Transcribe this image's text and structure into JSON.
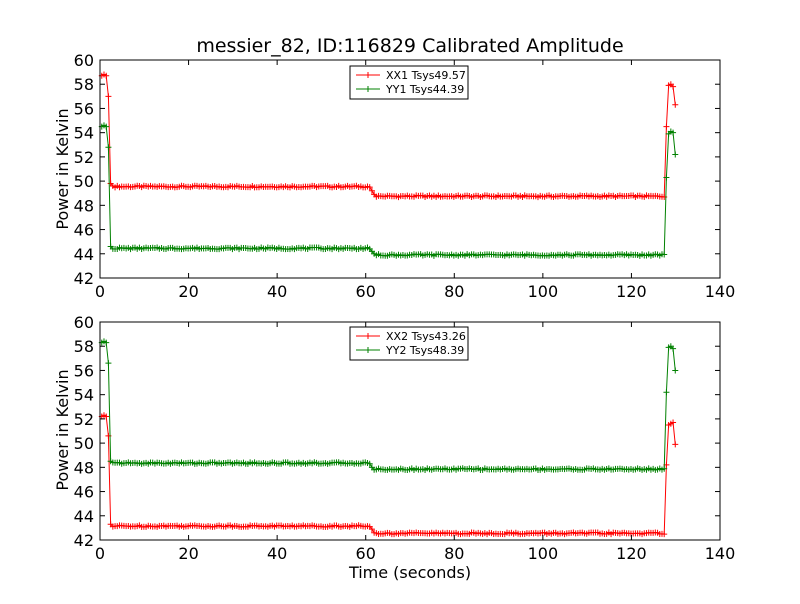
{
  "chart_data": [
    {
      "type": "line",
      "title": "messier_82, ID:116829 Calibrated Amplitude",
      "xlabel": "",
      "ylabel": "Power in Kelvin",
      "xlim": [
        0,
        140
      ],
      "ylim": [
        42,
        60
      ],
      "xticks": [
        "0",
        "20",
        "40",
        "60",
        "80",
        "100",
        "120",
        "140"
      ],
      "yticks": [
        "42",
        "44",
        "46",
        "48",
        "50",
        "52",
        "54",
        "56",
        "58",
        "60"
      ],
      "legend_position": "top-center",
      "grid": false,
      "series": [
        {
          "name": "XX1 Tsys49.57",
          "color": "#ff0000",
          "start": [
            [
              0.4,
              58.7
            ],
            [
              0.9,
              58.8
            ],
            [
              1.4,
              58.7
            ],
            [
              1.9,
              57.0
            ],
            [
              2.4,
              49.8
            ],
            [
              2.9,
              49.6
            ]
          ],
          "segments": [
            {
              "from": 3.4,
              "to": 60.4,
              "level": 49.55
            },
            {
              "from": 62.4,
              "to": 127.4,
              "level": 48.75
            }
          ],
          "transition": [
            [
              60.9,
              49.5
            ],
            [
              61.4,
              49.2
            ],
            [
              61.9,
              48.9
            ]
          ],
          "end": [
            [
              127.9,
              54.5
            ],
            [
              128.4,
              57.9
            ],
            [
              128.9,
              58.0
            ],
            [
              129.4,
              57.8
            ],
            [
              129.9,
              56.3
            ]
          ]
        },
        {
          "name": "YY1 Tsys44.39",
          "color": "#008000",
          "start": [
            [
              0.4,
              54.5
            ],
            [
              0.9,
              54.6
            ],
            [
              1.4,
              54.5
            ],
            [
              1.9,
              52.8
            ],
            [
              2.4,
              44.6
            ],
            [
              2.9,
              44.4
            ]
          ],
          "segments": [
            {
              "from": 3.4,
              "to": 60.4,
              "level": 44.45
            },
            {
              "from": 62.4,
              "to": 127.4,
              "level": 43.9
            }
          ],
          "transition": [
            [
              60.9,
              44.4
            ],
            [
              61.4,
              44.2
            ],
            [
              61.9,
              44.0
            ]
          ],
          "end": [
            [
              127.9,
              50.3
            ],
            [
              128.4,
              53.9
            ],
            [
              128.9,
              54.1
            ],
            [
              129.4,
              54.0
            ],
            [
              129.9,
              52.2
            ]
          ]
        }
      ]
    },
    {
      "type": "line",
      "title": "",
      "xlabel": "Time (seconds)",
      "ylabel": "Power in Kelvin",
      "xlim": [
        0,
        140
      ],
      "ylim": [
        42,
        60
      ],
      "xticks": [
        "0",
        "20",
        "40",
        "60",
        "80",
        "100",
        "120",
        "140"
      ],
      "yticks": [
        "42",
        "44",
        "46",
        "48",
        "50",
        "52",
        "54",
        "56",
        "58",
        "60"
      ],
      "legend_position": "top-center",
      "grid": false,
      "series": [
        {
          "name": "XX2 Tsys43.26",
          "color": "#ff0000",
          "start": [
            [
              0.4,
              52.2
            ],
            [
              0.9,
              52.3
            ],
            [
              1.4,
              52.2
            ],
            [
              1.9,
              50.6
            ],
            [
              2.4,
              43.3
            ],
            [
              2.9,
              43.1
            ]
          ],
          "segments": [
            {
              "from": 3.4,
              "to": 60.4,
              "level": 43.15
            },
            {
              "from": 62.4,
              "to": 127.4,
              "level": 42.55
            }
          ],
          "transition": [
            [
              60.9,
              43.1
            ],
            [
              61.4,
              42.9
            ],
            [
              61.9,
              42.6
            ]
          ],
          "end": [
            [
              127.9,
              48.2
            ],
            [
              128.4,
              51.5
            ],
            [
              128.9,
              51.6
            ],
            [
              129.4,
              51.7
            ],
            [
              129.9,
              49.9
            ]
          ]
        },
        {
          "name": "YY2 Tsys48.39",
          "color": "#008000",
          "start": [
            [
              0.4,
              58.3
            ],
            [
              0.9,
              58.4
            ],
            [
              1.4,
              58.3
            ],
            [
              1.9,
              56.6
            ],
            [
              2.4,
              48.5
            ],
            [
              2.9,
              48.4
            ]
          ],
          "segments": [
            {
              "from": 3.4,
              "to": 60.4,
              "level": 48.35
            },
            {
              "from": 62.4,
              "to": 127.4,
              "level": 47.85
            }
          ],
          "transition": [
            [
              60.9,
              48.3
            ],
            [
              61.4,
              48.0
            ],
            [
              61.9,
              47.8
            ]
          ],
          "end": [
            [
              127.9,
              54.2
            ],
            [
              128.4,
              57.9
            ],
            [
              128.9,
              58.0
            ],
            [
              129.4,
              57.8
            ],
            [
              129.9,
              56.0
            ]
          ]
        }
      ]
    }
  ]
}
